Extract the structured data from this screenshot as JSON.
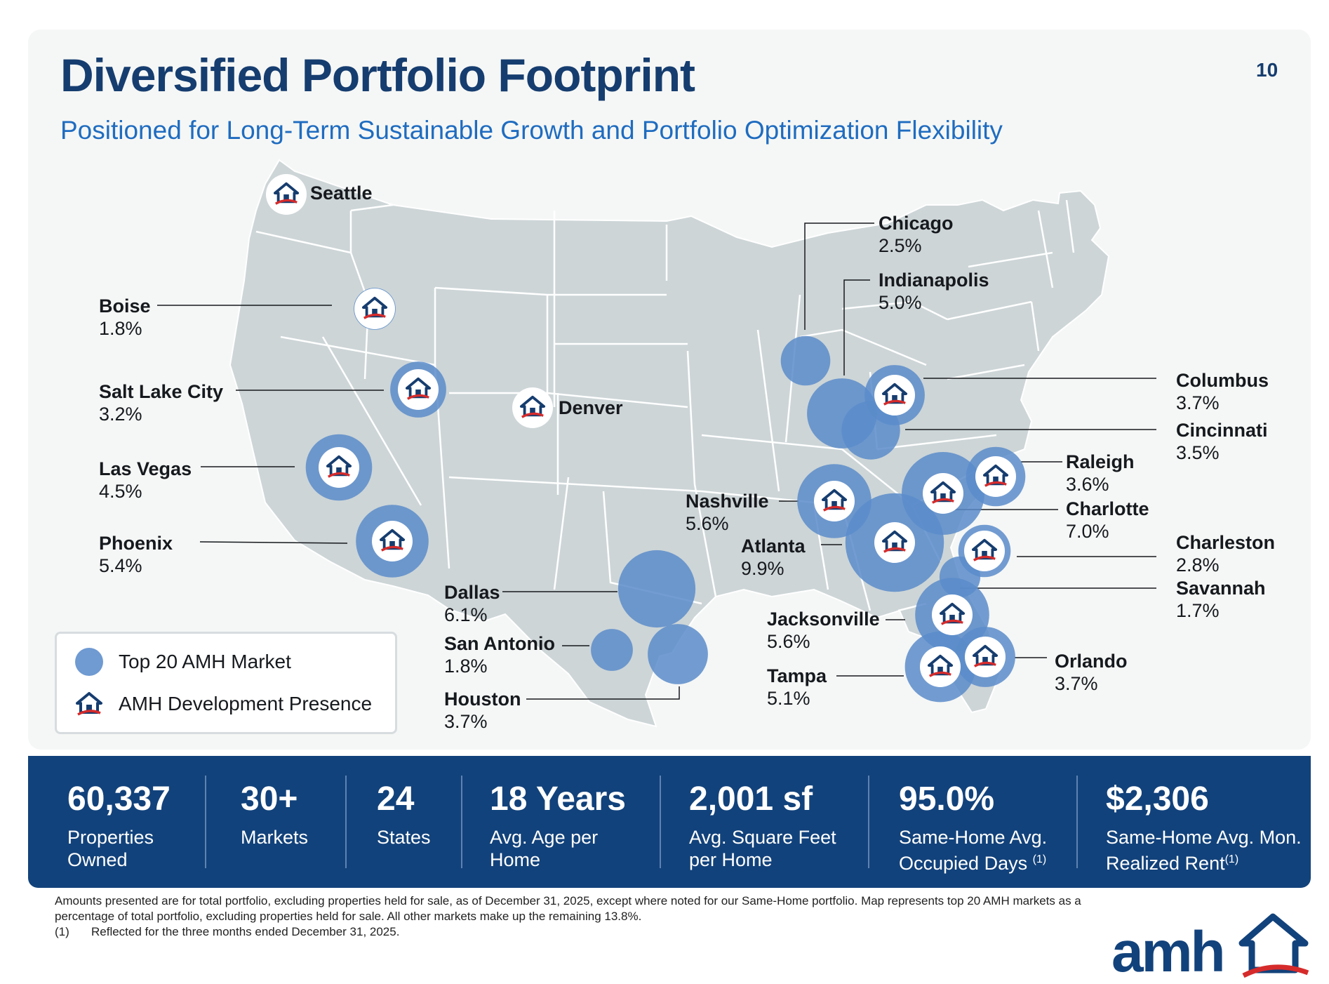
{
  "page": {
    "title": "Diversified Portfolio Footprint",
    "subtitle": "Positioned for Long-Term Sustainable Growth and Portfolio Optimization Flexibility",
    "page_number": "10"
  },
  "colors": {
    "navy": "#163d6f",
    "accent_blue": "#1f6cc0",
    "market_bubble": "#5b8cca",
    "land": "#cdd5d7",
    "stats_band": "#12427b",
    "logo_red": "#d62b2b"
  },
  "markets": [
    {
      "id": "boise",
      "name": "Boise",
      "share": "1.8%",
      "share_value": 1.8,
      "development": true
    },
    {
      "id": "salt-lake-city",
      "name": "Salt Lake City",
      "share": "3.2%",
      "share_value": 3.2,
      "development": true
    },
    {
      "id": "las-vegas",
      "name": "Las Vegas",
      "share": "4.5%",
      "share_value": 4.5,
      "development": true
    },
    {
      "id": "phoenix",
      "name": "Phoenix",
      "share": "5.4%",
      "share_value": 5.4,
      "development": true
    },
    {
      "id": "dallas",
      "name": "Dallas",
      "share": "6.1%",
      "share_value": 6.1,
      "development": false
    },
    {
      "id": "san-antonio",
      "name": "San Antonio",
      "share": "1.8%",
      "share_value": 1.8,
      "development": false
    },
    {
      "id": "houston",
      "name": "Houston",
      "share": "3.7%",
      "share_value": 3.7,
      "development": false
    },
    {
      "id": "chicago",
      "name": "Chicago",
      "share": "2.5%",
      "share_value": 2.5,
      "development": false
    },
    {
      "id": "indianapolis",
      "name": "Indianapolis",
      "share": "5.0%",
      "share_value": 5.0,
      "development": false
    },
    {
      "id": "columbus",
      "name": "Columbus",
      "share": "3.7%",
      "share_value": 3.7,
      "development": true
    },
    {
      "id": "cincinnati",
      "name": "Cincinnati",
      "share": "3.5%",
      "share_value": 3.5,
      "development": false
    },
    {
      "id": "nashville",
      "name": "Nashville",
      "share": "5.6%",
      "share_value": 5.6,
      "development": true
    },
    {
      "id": "atlanta",
      "name": "Atlanta",
      "share": "9.9%",
      "share_value": 9.9,
      "development": true
    },
    {
      "id": "raleigh",
      "name": "Raleigh",
      "share": "3.6%",
      "share_value": 3.6,
      "development": true
    },
    {
      "id": "charlotte",
      "name": "Charlotte",
      "share": "7.0%",
      "share_value": 7.0,
      "development": true
    },
    {
      "id": "charleston",
      "name": "Charleston",
      "share": "2.8%",
      "share_value": 2.8,
      "development": true
    },
    {
      "id": "savannah",
      "name": "Savannah",
      "share": "1.7%",
      "share_value": 1.7,
      "development": false
    },
    {
      "id": "jacksonville",
      "name": "Jacksonville",
      "share": "5.6%",
      "share_value": 5.6,
      "development": true
    },
    {
      "id": "tampa",
      "name": "Tampa",
      "share": "5.1%",
      "share_value": 5.1,
      "development": true
    },
    {
      "id": "orlando",
      "name": "Orlando",
      "share": "3.7%",
      "share_value": 3.7,
      "development": true
    }
  ],
  "development_only": [
    {
      "id": "seattle",
      "name": "Seattle"
    },
    {
      "id": "denver",
      "name": "Denver"
    }
  ],
  "legend": {
    "market": "Top 20 AMH Market",
    "development": "AMH Development Presence"
  },
  "stats": [
    {
      "value": "60,337",
      "label": "Properties Owned",
      "note": ""
    },
    {
      "value": "30+",
      "label": "Markets",
      "note": ""
    },
    {
      "value": "24",
      "label": "States",
      "note": ""
    },
    {
      "value": "18 Years",
      "label": "Avg. Age per Home",
      "note": ""
    },
    {
      "value": "2,001 sf",
      "label": "Avg. Square Feet per Home",
      "note": ""
    },
    {
      "value": "95.0%",
      "label": "Same-Home Avg. Occupied Days",
      "note": "(1)"
    },
    {
      "value": "$2,306",
      "label": "Same-Home Avg. Mon. Realized Rent",
      "note": "(1)"
    }
  ],
  "footnotes": {
    "main": "Amounts presented are for total portfolio, excluding properties held for sale, as of December 31, 2025, except where noted for our Same-Home portfolio. Map represents top 20 AMH markets as a percentage of total portfolio, excluding properties held for sale. All other markets make up the remaining 13.8%.",
    "note_marker": "(1)",
    "note_text": "Reflected for the three months ended December 31, 2025."
  },
  "logo": {
    "text": "amh"
  }
}
